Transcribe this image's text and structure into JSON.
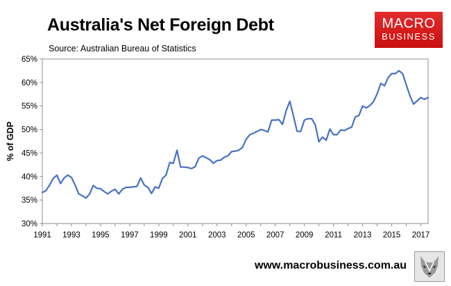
{
  "header": {
    "title": "Australia's Net Foreign Debt",
    "subtitle": "Source: Australian Bureau of Statistics"
  },
  "brand": {
    "logo_line1": "MACRO",
    "logo_line2": "BUSINESS",
    "website": "www.macrobusiness.com.au",
    "logo_color": "#d11a1b",
    "wolf_icon": "wolf-icon"
  },
  "chart_data": {
    "type": "line",
    "title": "Australia's Net Foreign Debt",
    "subtitle": "Source: Australian Bureau of Statistics",
    "xlabel": "",
    "ylabel": "% of GDP",
    "xlim": [
      1991,
      2017.5
    ],
    "ylim": [
      30,
      65
    ],
    "x_ticks": [
      1991,
      1993,
      1995,
      1997,
      1999,
      2001,
      2003,
      2005,
      2007,
      2009,
      2011,
      2013,
      2015,
      2017
    ],
    "y_ticks": [
      30,
      35,
      40,
      45,
      50,
      55,
      60,
      65
    ],
    "y_tick_labels": [
      "30%",
      "35%",
      "40%",
      "45%",
      "50%",
      "55%",
      "60%",
      "65%"
    ],
    "grid": false,
    "line_color": "#4472c4",
    "series": [
      {
        "x": [
          1991.0,
          1991.25,
          1991.5,
          1991.75,
          1992.0,
          1992.25,
          1992.5,
          1992.75,
          1993.0,
          1993.25,
          1993.5,
          1993.75,
          1994.0,
          1994.25,
          1994.5,
          1994.75,
          1995.0,
          1995.25,
          1995.5,
          1995.75,
          1996.0,
          1996.25,
          1996.5,
          1996.75,
          1997.0,
          1997.25,
          1997.5,
          1997.75,
          1998.0,
          1998.25,
          1998.5,
          1998.75,
          1999.0,
          1999.25,
          1999.5,
          1999.75,
          2000.0,
          2000.25,
          2000.5,
          2000.75,
          2001.0,
          2001.25,
          2001.5,
          2001.75,
          2002.0,
          2002.25,
          2002.5,
          2002.75,
          2003.0,
          2003.25,
          2003.5,
          2003.75,
          2004.0,
          2004.25,
          2004.5,
          2004.75,
          2005.0,
          2005.25,
          2005.5,
          2005.75,
          2006.0,
          2006.25,
          2006.5,
          2006.75,
          2007.0,
          2007.25,
          2007.5,
          2007.75,
          2008.0,
          2008.25,
          2008.5,
          2008.75,
          2009.0,
          2009.25,
          2009.5,
          2009.75,
          2010.0,
          2010.25,
          2010.5,
          2010.75,
          2011.0,
          2011.25,
          2011.5,
          2011.75,
          2012.0,
          2012.25,
          2012.5,
          2012.75,
          2013.0,
          2013.25,
          2013.5,
          2013.75,
          2014.0,
          2014.25,
          2014.5,
          2014.75,
          2015.0,
          2015.25,
          2015.5,
          2015.75,
          2016.0,
          2016.25,
          2016.5,
          2016.75,
          2017.0,
          2017.25,
          2017.5
        ],
        "values": [
          36.6,
          37.0,
          38.2,
          39.6,
          40.3,
          38.5,
          39.7,
          40.3,
          39.8,
          38.2,
          36.3,
          35.9,
          35.4,
          36.3,
          38.1,
          37.5,
          37.4,
          36.8,
          36.3,
          36.9,
          37.3,
          36.3,
          37.3,
          37.7,
          37.7,
          37.8,
          37.9,
          39.7,
          38.2,
          37.7,
          36.4,
          37.8,
          37.5,
          39.6,
          40.3,
          43.0,
          42.8,
          45.6,
          42.0,
          42.0,
          41.9,
          41.7,
          42.1,
          43.9,
          44.4,
          44.0,
          43.6,
          42.8,
          43.4,
          43.5,
          44.1,
          44.4,
          45.3,
          45.4,
          45.6,
          46.2,
          47.9,
          48.9,
          49.2,
          49.6,
          50.0,
          49.8,
          49.5,
          52.0,
          52.0,
          52.1,
          51.1,
          54.0,
          56.0,
          52.9,
          49.6,
          49.6,
          52.0,
          52.3,
          52.3,
          51.0,
          47.4,
          48.4,
          47.7,
          50.1,
          48.9,
          48.9,
          49.9,
          49.8,
          50.2,
          50.5,
          52.7,
          53.0,
          55.0,
          54.6,
          55.1,
          55.9,
          57.6,
          59.8,
          59.3,
          61.0,
          61.9,
          61.9,
          62.5,
          61.9,
          59.5,
          57.2,
          55.4,
          56.1,
          56.8,
          56.4,
          56.8
        ]
      }
    ]
  }
}
